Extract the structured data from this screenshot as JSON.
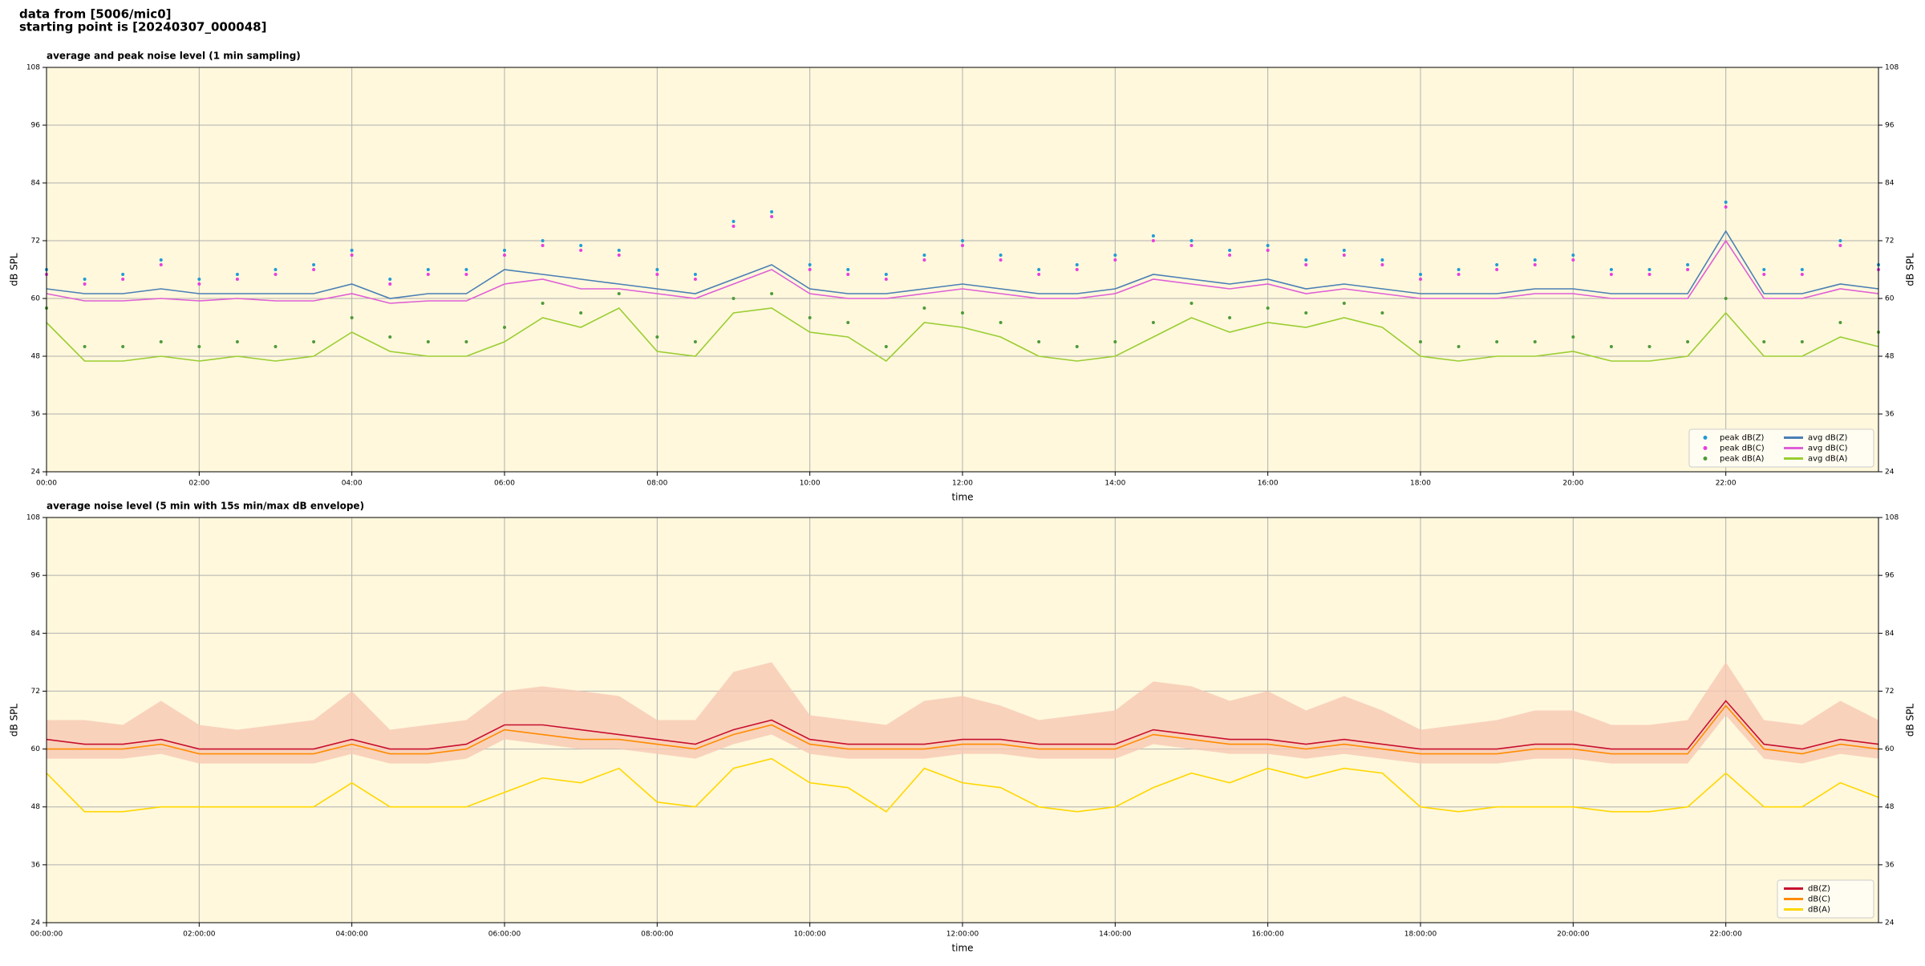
{
  "header": [
    "data from [5006/mic0]",
    "starting point is [20240307_000048]"
  ],
  "chart_data": [
    {
      "type": "line",
      "title": "average and peak noise level (1 min sampling)",
      "xlabel": "time",
      "ylabel": "dB SPL",
      "y2label": "dB SPL",
      "grid": true,
      "legend": "lower right",
      "legend_columns": 2,
      "background": "#fff8dc",
      "xlim": [
        0,
        24
      ],
      "ylim": [
        24,
        108
      ],
      "y2lim": [
        24,
        108
      ],
      "yticks": [
        24,
        36,
        48,
        60,
        72,
        84,
        96,
        108
      ],
      "y2ticks": [
        24,
        36,
        48,
        60,
        72,
        84,
        96,
        108
      ],
      "xticks": [
        {
          "value": 0,
          "label": "00:00"
        },
        {
          "value": 2,
          "label": "02:00"
        },
        {
          "value": 4,
          "label": "04:00"
        },
        {
          "value": 6,
          "label": "06:00"
        },
        {
          "value": 8,
          "label": "08:00"
        },
        {
          "value": 10,
          "label": "10:00"
        },
        {
          "value": 12,
          "label": "12:00"
        },
        {
          "value": 14,
          "label": "14:00"
        },
        {
          "value": 16,
          "label": "16:00"
        },
        {
          "value": 18,
          "label": "18:00"
        },
        {
          "value": 20,
          "label": "20:00"
        },
        {
          "value": 22,
          "label": "22:00"
        }
      ],
      "x": [
        0,
        0.5,
        1,
        1.5,
        2,
        2.5,
        3,
        3.5,
        4,
        4.5,
        5,
        5.5,
        6,
        6.5,
        7,
        7.5,
        8,
        8.5,
        9,
        9.5,
        10,
        10.5,
        11,
        11.5,
        12,
        12.5,
        13,
        13.5,
        14,
        14.5,
        15,
        15.5,
        16,
        16.5,
        17,
        17.5,
        18,
        18.5,
        19,
        19.5,
        20,
        20.5,
        21,
        21.5,
        22,
        22.5,
        23,
        23.5,
        24
      ],
      "series": [
        {
          "name": "peak dB(Z)",
          "style": "points",
          "color": "#1f9bd7",
          "values": [
            66,
            64,
            65,
            68,
            64,
            65,
            66,
            67,
            70,
            64,
            66,
            66,
            70,
            72,
            71,
            70,
            66,
            65,
            76,
            78,
            67,
            66,
            65,
            69,
            72,
            69,
            66,
            67,
            69,
            73,
            72,
            70,
            71,
            68,
            70,
            68,
            65,
            66,
            67,
            68,
            69,
            66,
            66,
            67,
            80,
            66,
            66,
            72,
            67
          ]
        },
        {
          "name": "peak dB(C)",
          "style": "points",
          "color": "#e83ee0",
          "values": [
            65,
            63,
            64,
            67,
            63,
            64,
            65,
            66,
            69,
            63,
            65,
            65,
            69,
            71,
            70,
            69,
            65,
            64,
            75,
            77,
            66,
            65,
            64,
            68,
            71,
            68,
            65,
            66,
            68,
            72,
            71,
            69,
            70,
            67,
            69,
            67,
            64,
            65,
            66,
            67,
            68,
            65,
            65,
            66,
            79,
            65,
            65,
            71,
            66
          ]
        },
        {
          "name": "peak dB(A)",
          "style": "points",
          "color": "#4e9a3a",
          "values": [
            58,
            50,
            50,
            51,
            50,
            51,
            50,
            51,
            56,
            52,
            51,
            51,
            54,
            59,
            57,
            61,
            52,
            51,
            60,
            61,
            56,
            55,
            50,
            58,
            57,
            55,
            51,
            50,
            51,
            55,
            59,
            56,
            58,
            57,
            59,
            57,
            51,
            50,
            51,
            51,
            52,
            50,
            50,
            51,
            60,
            51,
            51,
            55,
            53
          ]
        },
        {
          "name": "avg dB(Z)",
          "style": "line",
          "color": "#4a7fb5",
          "values": [
            62,
            61,
            61,
            62,
            61,
            61,
            61,
            61,
            63,
            60,
            61,
            61,
            66,
            65,
            64,
            63,
            62,
            61,
            64,
            67,
            62,
            61,
            61,
            62,
            63,
            62,
            61,
            61,
            62,
            65,
            64,
            63,
            64,
            62,
            63,
            62,
            61,
            61,
            61,
            62,
            62,
            61,
            61,
            61,
            74,
            61,
            61,
            63,
            62
          ]
        },
        {
          "name": "avg dB(C)",
          "style": "line",
          "color": "#de5fd6",
          "values": [
            61,
            59.5,
            59.5,
            60,
            59.5,
            60,
            59.5,
            59.5,
            61,
            59,
            59.5,
            59.5,
            63,
            64,
            62,
            62,
            61,
            60,
            63,
            66,
            61,
            60,
            60,
            61,
            62,
            61,
            60,
            60,
            61,
            64,
            63,
            62,
            63,
            61,
            62,
            61,
            60,
            60,
            60,
            61,
            61,
            60,
            60,
            60,
            72,
            60,
            60,
            62,
            61
          ]
        },
        {
          "name": "avg dB(A)",
          "style": "line",
          "color": "#9acd32",
          "values": [
            55,
            47,
            47,
            48,
            47,
            48,
            47,
            48,
            53,
            49,
            48,
            48,
            51,
            56,
            54,
            58,
            49,
            48,
            57,
            58,
            53,
            52,
            47,
            55,
            54,
            52,
            48,
            47,
            48,
            52,
            56,
            53,
            55,
            54,
            56,
            54,
            48,
            47,
            48,
            48,
            49,
            47,
            47,
            48,
            57,
            48,
            48,
            52,
            50
          ]
        }
      ]
    },
    {
      "type": "line",
      "title": "average noise level (5 min with 15s min/max dB envelope)",
      "xlabel": "time",
      "ylabel": "dB SPL",
      "y2label": "dB SPL",
      "grid": true,
      "legend": "lower right",
      "legend_columns": 1,
      "background": "#fff8dc",
      "xlim": [
        0,
        24
      ],
      "ylim": [
        24,
        108
      ],
      "y2lim": [
        24,
        108
      ],
      "yticks": [
        24,
        36,
        48,
        60,
        72,
        84,
        96,
        108
      ],
      "y2ticks": [
        24,
        36,
        48,
        60,
        72,
        84,
        96,
        108
      ],
      "xticks": [
        {
          "value": 0,
          "label": "00:00:00"
        },
        {
          "value": 2,
          "label": "02:00:00"
        },
        {
          "value": 4,
          "label": "04:00:00"
        },
        {
          "value": 6,
          "label": "06:00:00"
        },
        {
          "value": 8,
          "label": "08:00:00"
        },
        {
          "value": 10,
          "label": "10:00:00"
        },
        {
          "value": 12,
          "label": "12:00:00"
        },
        {
          "value": 14,
          "label": "14:00:00"
        },
        {
          "value": 16,
          "label": "16:00:00"
        },
        {
          "value": 18,
          "label": "18:00:00"
        },
        {
          "value": 20,
          "label": "20:00:00"
        },
        {
          "value": 22,
          "label": "22:00:00"
        }
      ],
      "x": [
        0,
        0.5,
        1,
        1.5,
        2,
        2.5,
        3,
        3.5,
        4,
        4.5,
        5,
        5.5,
        6,
        6.5,
        7,
        7.5,
        8,
        8.5,
        9,
        9.5,
        10,
        10.5,
        11,
        11.5,
        12,
        12.5,
        13,
        13.5,
        14,
        14.5,
        15,
        15.5,
        16,
        16.5,
        17,
        17.5,
        18,
        18.5,
        19,
        19.5,
        20,
        20.5,
        21,
        21.5,
        22,
        22.5,
        23,
        23.5,
        24
      ],
      "envelope": {
        "color": "#f8c8b4",
        "low": [
          58,
          58,
          58,
          59,
          57,
          57,
          57,
          57,
          59,
          57,
          57,
          58,
          62,
          61,
          60,
          60,
          59,
          58,
          61,
          63,
          59,
          58,
          58,
          58,
          59,
          59,
          58,
          58,
          58,
          61,
          60,
          59,
          59,
          58,
          59,
          58,
          57,
          57,
          57,
          58,
          58,
          57,
          57,
          57,
          67,
          58,
          57,
          59,
          58
        ],
        "high": [
          66,
          66,
          65,
          70,
          65,
          64,
          65,
          66,
          72,
          64,
          65,
          66,
          72,
          73,
          72,
          71,
          66,
          66,
          76,
          78,
          67,
          66,
          65,
          70,
          71,
          69,
          66,
          67,
          68,
          74,
          73,
          70,
          72,
          68,
          71,
          68,
          64,
          65,
          66,
          68,
          68,
          65,
          65,
          66,
          78,
          66,
          65,
          70,
          66
        ]
      },
      "series": [
        {
          "name": "dB(Z)",
          "style": "line",
          "color": "#c8102e",
          "values": [
            62,
            61,
            61,
            62,
            60,
            60,
            60,
            60,
            62,
            60,
            60,
            61,
            65,
            65,
            64,
            63,
            62,
            61,
            64,
            66,
            62,
            61,
            61,
            61,
            62,
            62,
            61,
            61,
            61,
            64,
            63,
            62,
            62,
            61,
            62,
            61,
            60,
            60,
            60,
            61,
            61,
            60,
            60,
            60,
            70,
            61,
            60,
            62,
            61
          ]
        },
        {
          "name": "dB(C)",
          "style": "line",
          "color": "#ff8c00",
          "values": [
            60,
            60,
            60,
            61,
            59,
            59,
            59,
            59,
            61,
            59,
            59,
            60,
            64,
            63,
            62,
            62,
            61,
            60,
            63,
            65,
            61,
            60,
            60,
            60,
            61,
            61,
            60,
            60,
            60,
            63,
            62,
            61,
            61,
            60,
            61,
            60,
            59,
            59,
            59,
            60,
            60,
            59,
            59,
            59,
            69,
            60,
            59,
            61,
            60
          ]
        },
        {
          "name": "dB(A)",
          "style": "line",
          "color": "#ffd700",
          "values": [
            55,
            47,
            47,
            48,
            48,
            48,
            48,
            48,
            53,
            48,
            48,
            48,
            51,
            54,
            53,
            56,
            49,
            48,
            56,
            58,
            53,
            52,
            47,
            56,
            53,
            52,
            48,
            47,
            48,
            52,
            55,
            53,
            56,
            54,
            56,
            55,
            48,
            47,
            48,
            48,
            48,
            47,
            47,
            48,
            55,
            48,
            48,
            53,
            50
          ]
        }
      ]
    }
  ]
}
